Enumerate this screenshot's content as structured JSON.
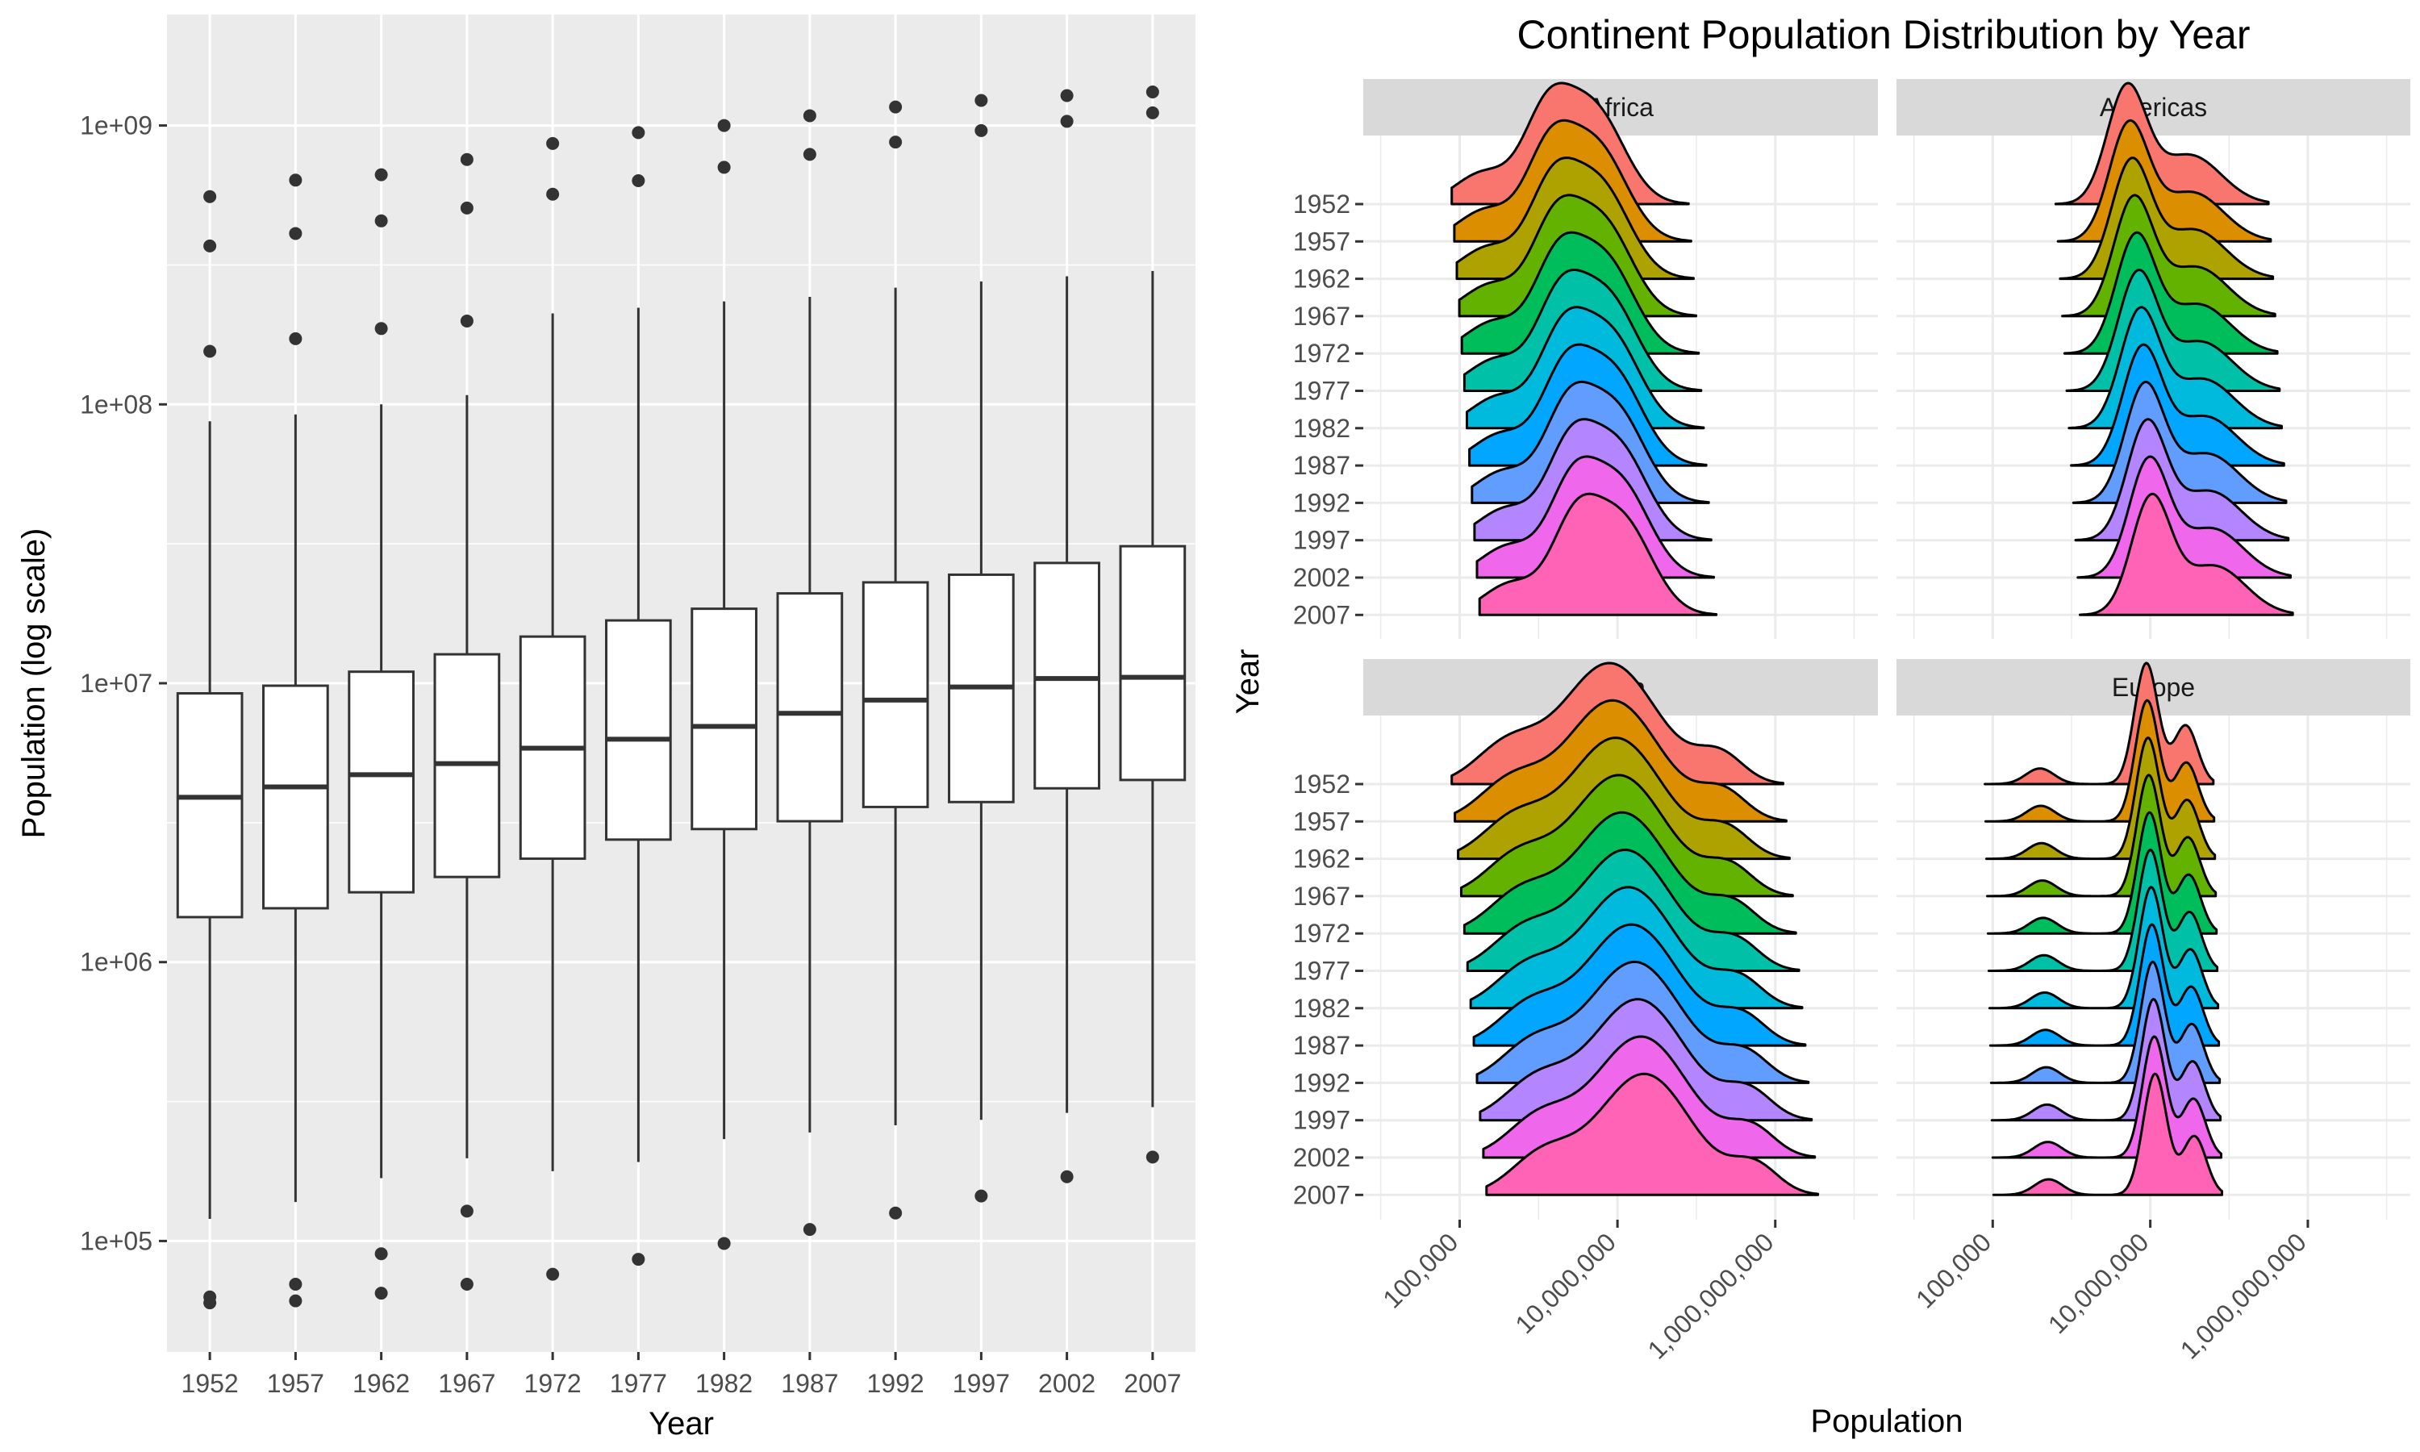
{
  "chart_data": [
    {
      "type": "box",
      "xlabel": "Year",
      "ylabel": "Population (log scale)",
      "yscale": "log10",
      "ylim": [
        40000,
        2500000000
      ],
      "y_ticks": [
        100000,
        1000000,
        10000000,
        100000000,
        1000000000
      ],
      "y_tick_labels": [
        "1e+05",
        "1e+06",
        "1e+07",
        "1e+08",
        "1e+09"
      ],
      "categories": [
        "1952",
        "1957",
        "1962",
        "1967",
        "1972",
        "1977",
        "1982",
        "1987",
        "1992",
        "1997",
        "2002",
        "2007"
      ],
      "boxes": [
        {
          "year": "1952",
          "q1": 1450000,
          "median": 3900000,
          "q3": 9200000,
          "whisker_low": 120000,
          "whisker_high": 87000000,
          "outliers": [
            60000,
            63000,
            155000000,
            370000000,
            556000000
          ]
        },
        {
          "year": "1957",
          "q1": 1560000,
          "median": 4250000,
          "q3": 9800000,
          "whisker_low": 138000,
          "whisker_high": 92000000,
          "outliers": [
            61000,
            70000,
            172000000,
            410000000,
            637000000
          ]
        },
        {
          "year": "1962",
          "q1": 1780000,
          "median": 4700000,
          "q3": 11000000,
          "whisker_low": 168000,
          "whisker_high": 100000000,
          "outliers": [
            65000,
            90000,
            187000000,
            455000000,
            666000000
          ]
        },
        {
          "year": "1967",
          "q1": 2020000,
          "median": 5150000,
          "q3": 12700000,
          "whisker_low": 198000,
          "whisker_high": 108000000,
          "outliers": [
            70000,
            128000,
            199000000,
            506000000,
            755000000
          ]
        },
        {
          "year": "1972",
          "q1": 2350000,
          "median": 5850000,
          "q3": 14700000,
          "whisker_low": 178000,
          "whisker_high": 212000000,
          "outliers": [
            76000,
            567000000,
            862000000
          ]
        },
        {
          "year": "1977",
          "q1": 2750000,
          "median": 6300000,
          "q3": 16800000,
          "whisker_low": 192000,
          "whisker_high": 222000000,
          "outliers": [
            86000,
            634000000,
            943000000
          ]
        },
        {
          "year": "1982",
          "q1": 3000000,
          "median": 7000000,
          "q3": 18500000,
          "whisker_low": 232000,
          "whisker_high": 234000000,
          "outliers": [
            98000,
            708000000,
            1000000000
          ]
        },
        {
          "year": "1987",
          "q1": 3200000,
          "median": 7800000,
          "q3": 21000000,
          "whisker_low": 245000,
          "whisker_high": 243000000,
          "outliers": [
            110000,
            788000000,
            1084000000
          ]
        },
        {
          "year": "1992",
          "q1": 3600000,
          "median": 8700000,
          "q3": 23000000,
          "whisker_low": 260000,
          "whisker_high": 262000000,
          "outliers": [
            126000,
            872000000,
            1165000000
          ]
        },
        {
          "year": "1997",
          "q1": 3750000,
          "median": 9700000,
          "q3": 24500000,
          "whisker_low": 272000,
          "whisker_high": 276000000,
          "outliers": [
            145000,
            959000000,
            1230000000
          ]
        },
        {
          "year": "2002",
          "q1": 4200000,
          "median": 10400000,
          "q3": 27000000,
          "whisker_low": 288000,
          "whisker_high": 288000000,
          "outliers": [
            170000,
            1035000000,
            1280000000
          ]
        },
        {
          "year": "2007",
          "q1": 4500000,
          "median": 10500000,
          "q3": 31000000,
          "whisker_low": 302000,
          "whisker_high": 301000000,
          "outliers": [
            200000,
            1110000000,
            1319000000
          ]
        }
      ]
    },
    {
      "type": "ridgeline",
      "title": "Continent Population Distribution by Year",
      "xlabel": "Population",
      "ylabel": "Year",
      "xscale": "log10",
      "xlim": [
        6000,
        20000000000
      ],
      "x_ticks": [
        100000,
        10000000,
        1000000000
      ],
      "x_tick_labels": [
        "100,000",
        "10,000,000",
        "1,000,000,000"
      ],
      "years": [
        "1952",
        "1957",
        "1962",
        "1967",
        "1972",
        "1977",
        "1982",
        "1987",
        "1992",
        "1997",
        "2002",
        "2007"
      ],
      "colors": [
        "#F8766D",
        "#DB8E00",
        "#AEA200",
        "#64B200",
        "#00BD5C",
        "#00C1A7",
        "#00BADE",
        "#00A6FF",
        "#619CFF",
        "#B385FF",
        "#EF67EB",
        "#FF63B6"
      ],
      "panels": [
        {
          "name": "Africa",
          "range": [
            4.9,
            7.9
          ],
          "components": [
            [
              0.15,
              5.3,
              0.35
            ],
            [
              0.4,
              6.1,
              0.3
            ],
            [
              0.45,
              6.7,
              0.38
            ]
          ],
          "shift_per_year": 0.032
        },
        {
          "name": "Americas",
          "range": [
            5.8,
            8.5
          ],
          "components": [
            [
              0.7,
              6.7,
              0.25
            ],
            [
              0.3,
              7.5,
              0.4
            ]
          ],
          "shift_per_year": 0.028
        },
        {
          "name": "Asia",
          "range": [
            4.9,
            9.1
          ],
          "components": [
            [
              0.2,
              5.6,
              0.4
            ],
            [
              0.65,
              6.9,
              0.6
            ],
            [
              0.15,
              8.3,
              0.3
            ]
          ],
          "shift_per_year": 0.04
        },
        {
          "name": "Europe",
          "range": [
            4.9,
            7.8
          ],
          "components": [
            [
              0.08,
              5.6,
              0.18
            ],
            [
              0.62,
              6.95,
              0.15
            ],
            [
              0.3,
              7.45,
              0.15
            ]
          ],
          "shift_per_year": 0.01
        }
      ]
    }
  ]
}
